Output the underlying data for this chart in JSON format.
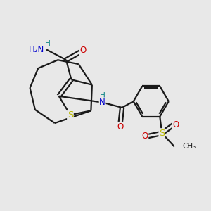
{
  "background_color": "#e8e8e8",
  "bond_color": "#1a1a1a",
  "S_color": "#b8b800",
  "N_color": "#0000cc",
  "O_color": "#cc0000",
  "H_color": "#008080",
  "line_width": 1.6,
  "font_size_atom": 8.5,
  "fig_size": [
    3.0,
    3.0
  ],
  "dpi": 100,
  "xlim": [
    0,
    10
  ],
  "ylim": [
    0,
    10
  ]
}
